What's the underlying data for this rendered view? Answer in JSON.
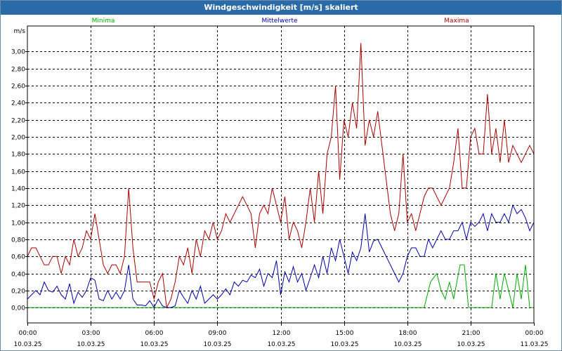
{
  "window": {
    "title": "Windgeschwindigkeit [m/s] skaliert"
  },
  "chart_data": {
    "type": "line",
    "title": "Windgeschwindigkeit [m/s] skaliert",
    "ylabel": "m/s",
    "xlabel": "",
    "ylim": [
      -0.18,
      3.3
    ],
    "xlim": [
      0,
      24
    ],
    "grid": true,
    "yticks": [
      0.0,
      0.2,
      0.4,
      0.6,
      0.8,
      1.0,
      1.2,
      1.4,
      1.6,
      1.8,
      2.0,
      2.2,
      2.4,
      2.6,
      2.8,
      3.0
    ],
    "ytick_labels": [
      "0,00",
      "0,20",
      "0,40",
      "0,60",
      "0,80",
      "1,00",
      "1,20",
      "1,40",
      "1,60",
      "1,80",
      "2,00",
      "2,20",
      "2,40",
      "2,60",
      "2,80",
      "3,00"
    ],
    "xticks": [
      0,
      3,
      6,
      9,
      12,
      15,
      18,
      21,
      24
    ],
    "xtick_labels": [
      {
        "time": "00:00",
        "date": "10.03.25"
      },
      {
        "time": "03:00",
        "date": "10.03.25"
      },
      {
        "time": "06:00",
        "date": "10.03.25"
      },
      {
        "time": "09:00",
        "date": "10.03.25"
      },
      {
        "time": "12:00",
        "date": "10.03.25"
      },
      {
        "time": "15:00",
        "date": "10.03.25"
      },
      {
        "time": "18:00",
        "date": "10.03.25"
      },
      {
        "time": "21:00",
        "date": "10.03.25"
      },
      {
        "time": "00:00",
        "date": "11.03.25"
      }
    ],
    "series": [
      {
        "name": "Minima",
        "color": "#00aa00",
        "points": [
          [
            0,
            0
          ],
          [
            18.8,
            0
          ],
          [
            19.1,
            0.3
          ],
          [
            19.4,
            0.4
          ],
          [
            19.6,
            0.2
          ],
          [
            19.8,
            0.1
          ],
          [
            20.0,
            0.3
          ],
          [
            20.2,
            0.1
          ],
          [
            20.5,
            0.5
          ],
          [
            20.7,
            0.5
          ],
          [
            20.9,
            0
          ],
          [
            22.0,
            0
          ],
          [
            22.2,
            0.4
          ],
          [
            22.4,
            0.1
          ],
          [
            22.6,
            0.4
          ],
          [
            22.8,
            0.2
          ],
          [
            23.0,
            0
          ],
          [
            23.2,
            0.4
          ],
          [
            23.4,
            0.1
          ],
          [
            23.6,
            0.5
          ],
          [
            23.8,
            0
          ],
          [
            24,
            0
          ]
        ]
      },
      {
        "name": "Mittelwerte",
        "color": "#0000aa",
        "points": [
          [
            0,
            0.1
          ],
          [
            0.2,
            0.15
          ],
          [
            0.4,
            0.2
          ],
          [
            0.6,
            0.15
          ],
          [
            0.8,
            0.3
          ],
          [
            1.0,
            0.2
          ],
          [
            1.2,
            0.18
          ],
          [
            1.4,
            0.25
          ],
          [
            1.6,
            0.15
          ],
          [
            1.8,
            0.1
          ],
          [
            2.0,
            0.28
          ],
          [
            2.2,
            0.05
          ],
          [
            2.4,
            0.18
          ],
          [
            2.6,
            0.12
          ],
          [
            2.8,
            0.2
          ],
          [
            3.0,
            0.35
          ],
          [
            3.2,
            0.32
          ],
          [
            3.4,
            0.1
          ],
          [
            3.6,
            0.08
          ],
          [
            3.8,
            0.2
          ],
          [
            4.0,
            0.1
          ],
          [
            4.2,
            0.18
          ],
          [
            4.4,
            0.1
          ],
          [
            4.6,
            0.2
          ],
          [
            4.8,
            0.5
          ],
          [
            5.0,
            0.1
          ],
          [
            5.2,
            0.03
          ],
          [
            5.4,
            0.03
          ],
          [
            5.6,
            0.02
          ],
          [
            5.8,
            0.08
          ],
          [
            6.0,
            0.0
          ],
          [
            6.2,
            0.1
          ],
          [
            6.4,
            0.02
          ],
          [
            6.6,
            0.0
          ],
          [
            6.8,
            0.0
          ],
          [
            7.0,
            0.02
          ],
          [
            7.2,
            0.2
          ],
          [
            7.4,
            0.12
          ],
          [
            7.6,
            0.05
          ],
          [
            7.8,
            0.2
          ],
          [
            8.0,
            0.1
          ],
          [
            8.2,
            0.25
          ],
          [
            8.4,
            0.05
          ],
          [
            8.6,
            0.1
          ],
          [
            8.8,
            0.15
          ],
          [
            9.0,
            0.1
          ],
          [
            9.2,
            0.15
          ],
          [
            9.4,
            0.22
          ],
          [
            9.6,
            0.15
          ],
          [
            9.8,
            0.3
          ],
          [
            10.0,
            0.25
          ],
          [
            10.2,
            0.32
          ],
          [
            10.4,
            0.3
          ],
          [
            10.6,
            0.38
          ],
          [
            10.8,
            0.35
          ],
          [
            11.0,
            0.45
          ],
          [
            11.2,
            0.25
          ],
          [
            11.4,
            0.4
          ],
          [
            11.6,
            0.35
          ],
          [
            11.8,
            0.55
          ],
          [
            12.0,
            0.15
          ],
          [
            12.2,
            0.42
          ],
          [
            12.4,
            0.3
          ],
          [
            12.6,
            0.48
          ],
          [
            12.8,
            0.3
          ],
          [
            13.0,
            0.4
          ],
          [
            13.2,
            0.2
          ],
          [
            13.4,
            0.35
          ],
          [
            13.6,
            0.5
          ],
          [
            13.8,
            0.35
          ],
          [
            14.0,
            0.6
          ],
          [
            14.2,
            0.4
          ],
          [
            14.4,
            0.7
          ],
          [
            14.6,
            0.55
          ],
          [
            14.8,
            0.8
          ],
          [
            15.0,
            0.6
          ],
          [
            15.2,
            0.4
          ],
          [
            15.4,
            0.65
          ],
          [
            15.6,
            0.55
          ],
          [
            15.8,
            0.7
          ],
          [
            16.0,
            1.1
          ],
          [
            16.2,
            0.65
          ],
          [
            16.4,
            0.78
          ],
          [
            16.6,
            0.8
          ],
          [
            16.8,
            0.7
          ],
          [
            17.0,
            0.6
          ],
          [
            17.2,
            0.5
          ],
          [
            17.4,
            0.4
          ],
          [
            17.6,
            0.3
          ],
          [
            17.8,
            0.4
          ],
          [
            18.0,
            0.6
          ],
          [
            18.2,
            0.7
          ],
          [
            18.4,
            0.7
          ],
          [
            18.6,
            0.6
          ],
          [
            18.8,
            0.6
          ],
          [
            19.0,
            0.8
          ],
          [
            19.2,
            0.7
          ],
          [
            19.4,
            0.8
          ],
          [
            19.6,
            0.9
          ],
          [
            19.8,
            0.8
          ],
          [
            20.0,
            0.8
          ],
          [
            20.2,
            0.9
          ],
          [
            20.4,
            0.9
          ],
          [
            20.6,
            1.0
          ],
          [
            20.8,
            0.8
          ],
          [
            21.0,
            1.0
          ],
          [
            21.2,
            0.95
          ],
          [
            21.4,
            1.0
          ],
          [
            21.6,
            1.1
          ],
          [
            21.8,
            0.9
          ],
          [
            22.0,
            1.1
          ],
          [
            22.2,
            1.0
          ],
          [
            22.4,
            1.0
          ],
          [
            22.6,
            1.1
          ],
          [
            22.8,
            1.0
          ],
          [
            23.0,
            1.2
          ],
          [
            23.2,
            1.1
          ],
          [
            23.4,
            1.15
          ],
          [
            23.6,
            1.05
          ],
          [
            23.8,
            0.9
          ],
          [
            24.0,
            1.0
          ]
        ]
      },
      {
        "name": "Maxima",
        "color": "#aa0000",
        "points": [
          [
            0,
            0.6
          ],
          [
            0.2,
            0.7
          ],
          [
            0.4,
            0.7
          ],
          [
            0.6,
            0.6
          ],
          [
            0.8,
            0.5
          ],
          [
            1.0,
            0.5
          ],
          [
            1.2,
            0.6
          ],
          [
            1.4,
            0.6
          ],
          [
            1.6,
            0.4
          ],
          [
            1.8,
            0.6
          ],
          [
            2.0,
            0.5
          ],
          [
            2.2,
            0.8
          ],
          [
            2.4,
            0.6
          ],
          [
            2.6,
            0.7
          ],
          [
            2.8,
            0.9
          ],
          [
            3.0,
            0.8
          ],
          [
            3.2,
            1.1
          ],
          [
            3.4,
            0.8
          ],
          [
            3.6,
            0.5
          ],
          [
            3.8,
            0.4
          ],
          [
            4.0,
            0.5
          ],
          [
            4.2,
            0.5
          ],
          [
            4.4,
            0.4
          ],
          [
            4.6,
            0.6
          ],
          [
            4.8,
            1.4
          ],
          [
            5.0,
            0.7
          ],
          [
            5.2,
            0.3
          ],
          [
            5.4,
            0.3
          ],
          [
            5.6,
            0.3
          ],
          [
            5.8,
            0.3
          ],
          [
            6.0,
            0.1
          ],
          [
            6.2,
            0.3
          ],
          [
            6.4,
            0.4
          ],
          [
            6.6,
            0.0
          ],
          [
            6.8,
            0.1
          ],
          [
            7.0,
            0.3
          ],
          [
            7.2,
            0.6
          ],
          [
            7.4,
            0.5
          ],
          [
            7.6,
            0.7
          ],
          [
            7.8,
            0.4
          ],
          [
            8.0,
            0.8
          ],
          [
            8.2,
            0.6
          ],
          [
            8.4,
            0.9
          ],
          [
            8.6,
            0.8
          ],
          [
            8.8,
            1.0
          ],
          [
            9.0,
            0.8
          ],
          [
            9.2,
            0.9
          ],
          [
            9.4,
            1.1
          ],
          [
            9.6,
            1.0
          ],
          [
            9.8,
            1.1
          ],
          [
            10.0,
            1.2
          ],
          [
            10.2,
            1.3
          ],
          [
            10.4,
            1.2
          ],
          [
            10.6,
            1.1
          ],
          [
            10.8,
            0.7
          ],
          [
            11.0,
            1.1
          ],
          [
            11.2,
            1.2
          ],
          [
            11.4,
            1.1
          ],
          [
            11.6,
            1.4
          ],
          [
            11.8,
            1.2
          ],
          [
            12.0,
            1.0
          ],
          [
            12.2,
            1.3
          ],
          [
            12.4,
            0.8
          ],
          [
            12.6,
            1.0
          ],
          [
            12.8,
            0.9
          ],
          [
            13.0,
            0.7
          ],
          [
            13.2,
            1.0
          ],
          [
            13.4,
            1.4
          ],
          [
            13.6,
            1.0
          ],
          [
            13.8,
            1.6
          ],
          [
            14.0,
            1.1
          ],
          [
            14.2,
            1.8
          ],
          [
            14.4,
            2.0
          ],
          [
            14.6,
            2.6
          ],
          [
            14.8,
            1.5
          ],
          [
            15.0,
            2.2
          ],
          [
            15.2,
            2.0
          ],
          [
            15.4,
            2.4
          ],
          [
            15.6,
            2.1
          ],
          [
            15.8,
            3.1
          ],
          [
            16.0,
            1.9
          ],
          [
            16.2,
            2.2
          ],
          [
            16.4,
            2.0
          ],
          [
            16.6,
            2.3
          ],
          [
            16.8,
            1.9
          ],
          [
            17.0,
            1.5
          ],
          [
            17.2,
            1.1
          ],
          [
            17.4,
            0.9
          ],
          [
            17.6,
            1.1
          ],
          [
            17.8,
            1.8
          ],
          [
            18.0,
            1.0
          ],
          [
            18.2,
            1.1
          ],
          [
            18.4,
            0.9
          ],
          [
            18.6,
            1.1
          ],
          [
            18.8,
            1.3
          ],
          [
            19.0,
            1.4
          ],
          [
            19.2,
            1.4
          ],
          [
            19.4,
            1.3
          ],
          [
            19.6,
            1.2
          ],
          [
            19.8,
            1.3
          ],
          [
            20.0,
            1.4
          ],
          [
            20.2,
            1.7
          ],
          [
            20.4,
            2.1
          ],
          [
            20.6,
            1.4
          ],
          [
            20.8,
            1.4
          ],
          [
            21.0,
            2.0
          ],
          [
            21.2,
            2.1
          ],
          [
            21.4,
            1.8
          ],
          [
            21.6,
            1.8
          ],
          [
            21.8,
            2.5
          ],
          [
            22.0,
            1.8
          ],
          [
            22.2,
            2.1
          ],
          [
            22.4,
            1.7
          ],
          [
            22.6,
            2.2
          ],
          [
            22.8,
            1.7
          ],
          [
            23.0,
            1.9
          ],
          [
            23.2,
            1.8
          ],
          [
            23.4,
            1.7
          ],
          [
            23.6,
            1.8
          ],
          [
            23.8,
            1.9
          ],
          [
            24.0,
            1.8
          ]
        ]
      }
    ]
  }
}
